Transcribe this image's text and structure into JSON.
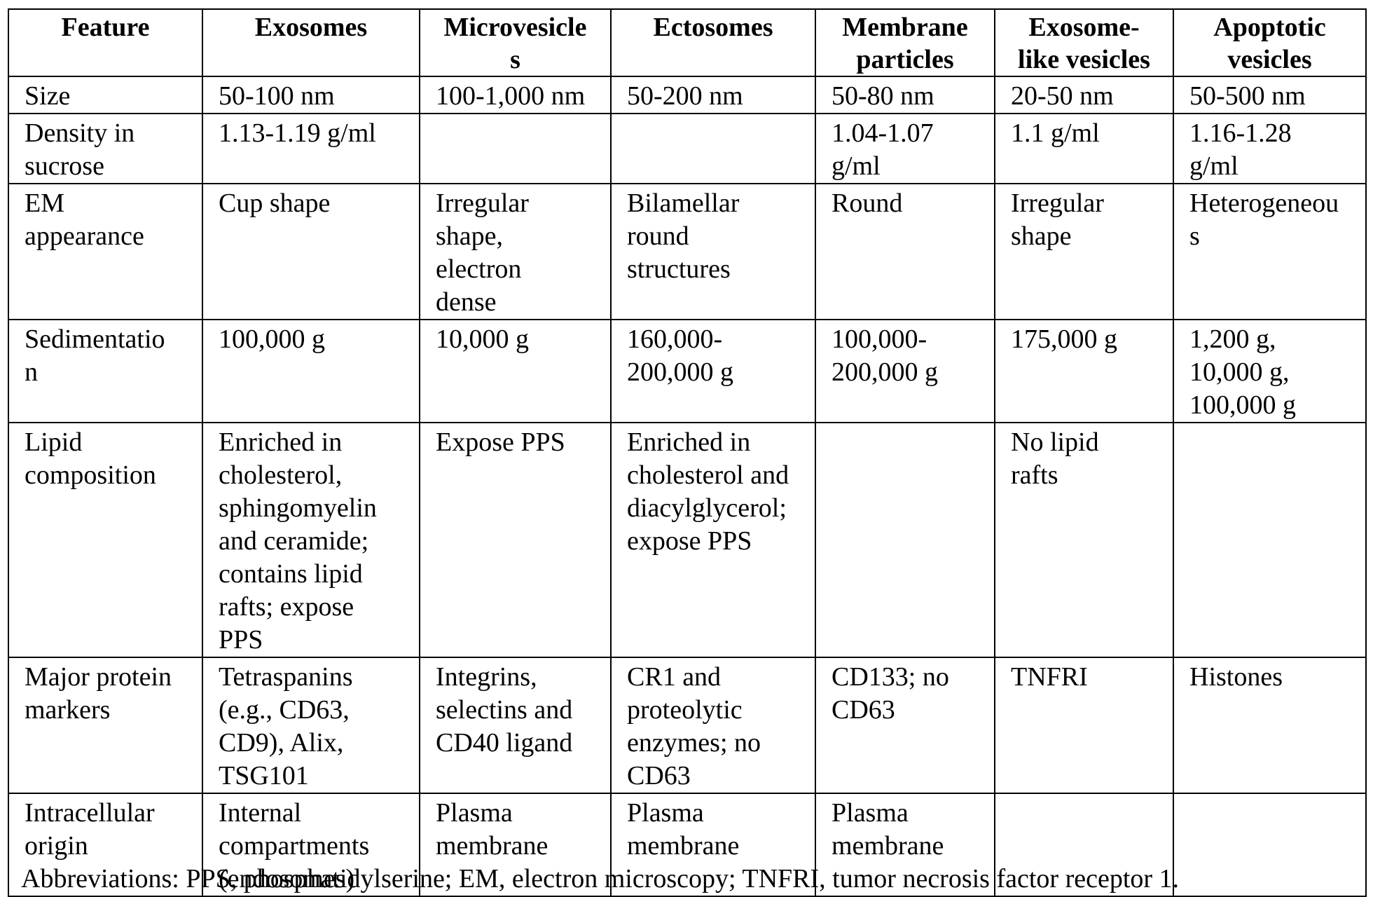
{
  "table": {
    "headers": [
      "Feature",
      "Exosomes",
      "Microvesicle\ns",
      "Ectosomes",
      "Membrane\nparticles",
      "Exosome-\nlike vesicles",
      "Apoptotic\nvesicles"
    ],
    "rows": [
      {
        "feature": "Size",
        "cells": [
          "50-100 nm",
          "100-1,000 nm",
          "50-200 nm",
          "50-80 nm",
          "20-50 nm",
          "50-500 nm"
        ]
      },
      {
        "feature": "Density in\nsucrose",
        "cells": [
          "1.13-1.19 g/ml",
          "",
          "",
          "1.04-1.07\ng/ml",
          "1.1 g/ml",
          "1.16-1.28\ng/ml"
        ]
      },
      {
        "feature": "EM\nappearance",
        "cells": [
          "Cup shape",
          "Irregular\nshape,\nelectron\ndense",
          "Bilamellar\nround\nstructures",
          "Round",
          "Irregular\nshape",
          "Heterogeneou\ns"
        ]
      },
      {
        "feature": "Sedimentatio\nn",
        "cells": [
          "100,000 g",
          "10,000 g",
          "160,000-\n200,000 g",
          "100,000-\n200,000 g",
          "175,000 g",
          "1,200 g,\n10,000 g,\n100,000 g"
        ]
      },
      {
        "feature": "Lipid\ncomposition",
        "cells": [
          "Enriched in\ncholesterol,\nsphingomyelin\nand ceramide;\ncontains lipid\nrafts; expose\nPPS",
          "Expose PPS",
          "Enriched in\ncholesterol and\ndiacylglycerol;\nexpose PPS",
          "",
          "No lipid\nrafts",
          ""
        ]
      },
      {
        "feature": "Major protein\nmarkers",
        "cells": [
          "Tetraspanins\n(e.g., CD63,\nCD9), Alix,\nTSG101",
          "Integrins,\nselectins and\nCD40 ligand",
          "CR1 and\nproteolytic\nenzymes; no\nCD63",
          "CD133; no\nCD63",
          "TNFRI",
          "Histones"
        ]
      },
      {
        "feature": "Intracellular\norigin",
        "cells": [
          "Internal\ncompartments\n(endosomes)",
          "Plasma\nmembrane",
          "Plasma\nmembrane",
          "Plasma\nmembrane",
          "",
          ""
        ]
      }
    ]
  },
  "caption": "Abbreviations: PPS, phosphatidylserine; EM, electron microscopy; TNFRI, tumor necrosis factor receptor 1."
}
